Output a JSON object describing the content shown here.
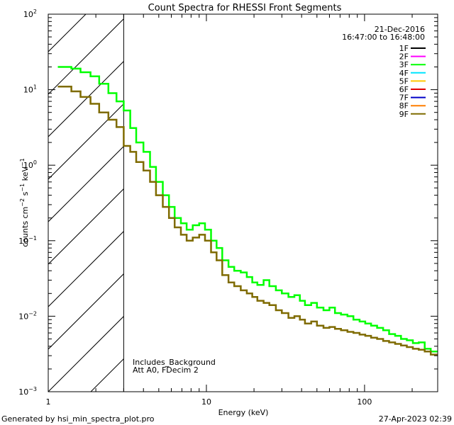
{
  "chart_data": {
    "type": "line",
    "title": "Count Spectra for RHESSI Front Segments",
    "xlabel": "Energy (keV)",
    "ylabel_parts": {
      "base": "counts cm",
      "exp1": "−2",
      "mid": " s",
      "exp2": "−1",
      "unit": " keV",
      "exp3": "−1"
    },
    "xscale": "log",
    "yscale": "log",
    "xlim": [
      1,
      290
    ],
    "ylim": [
      0.001,
      100
    ],
    "x_ticks": [
      {
        "value": 1,
        "label": "1"
      },
      {
        "value": 10,
        "label": "10"
      },
      {
        "value": 100,
        "label": "100"
      }
    ],
    "y_ticks": [
      {
        "value": 0.001,
        "base": "10",
        "exp": "−3"
      },
      {
        "value": 0.01,
        "base": "10",
        "exp": "−2"
      },
      {
        "value": 0.1,
        "base": "10",
        "exp": "−1"
      },
      {
        "value": 1,
        "base": "10",
        "exp": "0"
      },
      {
        "value": 10,
        "base": "10",
        "exp": "1"
      },
      {
        "value": 100,
        "base": "10",
        "exp": "2"
      }
    ],
    "date": "21-Dec-2016",
    "time_range": "16:47:00 to 16:48:00",
    "legend_position": "top-right",
    "hatched_region": {
      "x0": 1,
      "x1": 3
    },
    "notes": [
      "Includes_Background",
      "Att A0, FDecim 2"
    ],
    "legend": [
      {
        "name": "1F",
        "color": "#000000"
      },
      {
        "name": "2F",
        "color": "#ff00ff"
      },
      {
        "name": "3F",
        "color": "#00ff00"
      },
      {
        "name": "4F",
        "color": "#00e5ff"
      },
      {
        "name": "5F",
        "color": "#ffc800"
      },
      {
        "name": "6F",
        "color": "#e00000"
      },
      {
        "name": "7F",
        "color": "#0000c8"
      },
      {
        "name": "8F",
        "color": "#ff7f00"
      },
      {
        "name": "9F",
        "color": "#7f6b00"
      }
    ],
    "series": [
      {
        "name": "3F",
        "color": "#00ff00",
        "edges": [
          1.15,
          1.4,
          1.6,
          1.85,
          2.1,
          2.4,
          2.7,
          3.0,
          3.3,
          3.6,
          4.0,
          4.4,
          4.8,
          5.3,
          5.8,
          6.3,
          6.9,
          7.5,
          8.2,
          9.0,
          9.8,
          10.7,
          11.6,
          12.6,
          13.8,
          15.0,
          16.5,
          18.0,
          19.5,
          21,
          23,
          25,
          27.5,
          30,
          33,
          36,
          39,
          42,
          46,
          50,
          55,
          60,
          65,
          71,
          78,
          85,
          93,
          101,
          110,
          120,
          131,
          143,
          156,
          170,
          185,
          202,
          220,
          240,
          262,
          290
        ],
        "values": [
          20,
          19,
          17,
          15,
          12,
          9,
          7,
          5.3,
          3.1,
          2.0,
          1.5,
          0.95,
          0.6,
          0.4,
          0.28,
          0.2,
          0.17,
          0.14,
          0.16,
          0.17,
          0.14,
          0.1,
          0.08,
          0.055,
          0.045,
          0.04,
          0.038,
          0.033,
          0.028,
          0.026,
          0.03,
          0.025,
          0.022,
          0.02,
          0.018,
          0.019,
          0.016,
          0.014,
          0.015,
          0.013,
          0.012,
          0.013,
          0.011,
          0.0105,
          0.01,
          0.009,
          0.0085,
          0.008,
          0.0075,
          0.007,
          0.0065,
          0.0058,
          0.0055,
          0.005,
          0.0048,
          0.0044,
          0.0045,
          0.0037,
          0.0034
        ]
      },
      {
        "name": "9F",
        "color": "#7f6b00",
        "edges": [
          1.15,
          1.4,
          1.6,
          1.85,
          2.1,
          2.4,
          2.7,
          3.0,
          3.3,
          3.6,
          4.0,
          4.4,
          4.8,
          5.3,
          5.8,
          6.3,
          6.9,
          7.5,
          8.2,
          9.0,
          9.8,
          10.7,
          11.6,
          12.6,
          13.8,
          15.0,
          16.5,
          18.0,
          19.5,
          21,
          23,
          25,
          27.5,
          30,
          33,
          36,
          39,
          42,
          46,
          50,
          55,
          60,
          65,
          71,
          78,
          85,
          93,
          101,
          110,
          120,
          131,
          143,
          156,
          170,
          185,
          202,
          220,
          240,
          262,
          290
        ],
        "values": [
          11,
          9.5,
          8,
          6.5,
          5,
          4,
          3.2,
          1.8,
          1.5,
          1.1,
          0.85,
          0.6,
          0.4,
          0.28,
          0.2,
          0.15,
          0.12,
          0.1,
          0.11,
          0.12,
          0.1,
          0.07,
          0.055,
          0.035,
          0.028,
          0.025,
          0.022,
          0.02,
          0.018,
          0.016,
          0.015,
          0.014,
          0.012,
          0.011,
          0.0095,
          0.01,
          0.009,
          0.008,
          0.0085,
          0.0075,
          0.007,
          0.0072,
          0.0068,
          0.0065,
          0.0062,
          0.006,
          0.0057,
          0.0055,
          0.0052,
          0.005,
          0.0047,
          0.0045,
          0.0043,
          0.0041,
          0.0039,
          0.0037,
          0.0036,
          0.0034,
          0.0031
        ]
      }
    ]
  },
  "footer": {
    "generated_by": "Generated by hsi_min_spectra_plot.pro",
    "timestamp": "27-Apr-2023 02:39"
  }
}
